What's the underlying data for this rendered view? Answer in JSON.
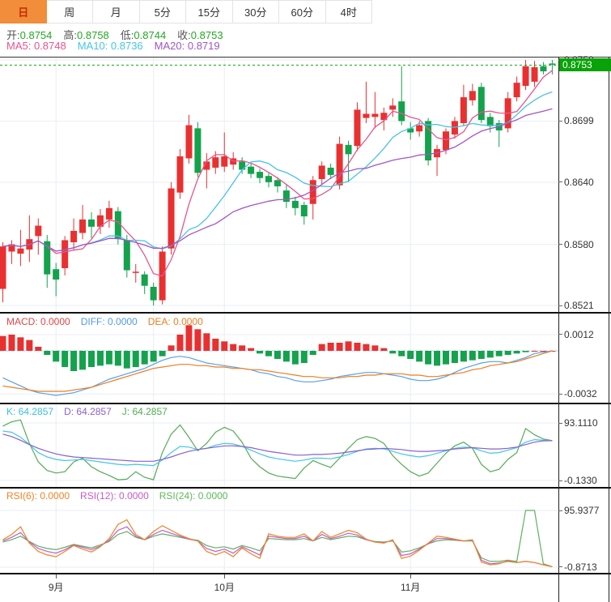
{
  "toolbar": {
    "tabs": [
      {
        "label": "日",
        "active": true
      },
      {
        "label": "周",
        "active": false
      },
      {
        "label": "月",
        "active": false
      },
      {
        "label": "5分",
        "active": false
      },
      {
        "label": "15分",
        "active": false
      },
      {
        "label": "30分",
        "active": false
      },
      {
        "label": "60分",
        "active": false
      },
      {
        "label": "4时",
        "active": false
      }
    ]
  },
  "info": {
    "label_color": "#555555",
    "ohlc_value_color": "#22a822",
    "ohlc": [
      {
        "label": "开:",
        "value": "0.8754"
      },
      {
        "label": "高:",
        "value": "0.8758"
      },
      {
        "label": "低:",
        "value": "0.8744"
      },
      {
        "label": "收:",
        "value": "0.8753"
      }
    ],
    "ma": [
      {
        "label": "MA5:",
        "value": "0.8748",
        "color": "#e8548c"
      },
      {
        "label": "MA10:",
        "value": "0.8736",
        "color": "#45c5e5"
      },
      {
        "label": "MA20:",
        "value": "0.8719",
        "color": "#a055c0"
      }
    ]
  },
  "colors": {
    "up": "#e93030",
    "down": "#14a24d",
    "ma5": "#e8548c",
    "ma10": "#49c1e8",
    "ma20": "#a356c2",
    "diff": "#58a0e8",
    "dea": "#ee7c1e",
    "k": "#41c8e0",
    "d": "#8a5fd0",
    "j": "#55ab55",
    "rsi6": "#ee8322",
    "rsi12": "#c45bcc",
    "rsi24": "#60b060",
    "grid": "#e9eef3",
    "vgrid": "#e8edf2",
    "current": "#0caa0c",
    "macd_zero_dash": "#a8cdf0"
  },
  "chart_data": {
    "type": "candlestick+indicators",
    "main": {
      "y_axis": [
        {
          "text": "0.8758",
          "value": 0.8758
        },
        {
          "text": "0.8699",
          "value": 0.8699
        },
        {
          "text": "0.8640",
          "value": 0.864
        },
        {
          "text": "0.8580",
          "value": 0.858
        },
        {
          "text": "0.8521",
          "value": 0.8521
        }
      ],
      "current": {
        "text": "0.8753",
        "value": 0.8753
      },
      "ma_periods": [
        5,
        10,
        20
      ],
      "candles": [
        [
          0.8537,
          0.8582,
          0.8524,
          0.8578
        ],
        [
          0.8573,
          0.8584,
          0.8561,
          0.858
        ],
        [
          0.8571,
          0.8594,
          0.8559,
          0.8576
        ],
        [
          0.8575,
          0.8608,
          0.8563,
          0.8585
        ],
        [
          0.8588,
          0.8605,
          0.857,
          0.8598
        ],
        [
          0.8583,
          0.8589,
          0.8538,
          0.8551
        ],
        [
          0.8556,
          0.8562,
          0.853,
          0.8546
        ],
        [
          0.8557,
          0.8588,
          0.855,
          0.8584
        ],
        [
          0.8582,
          0.8605,
          0.8575,
          0.8593
        ],
        [
          0.8591,
          0.8618,
          0.8585,
          0.8604
        ],
        [
          0.8604,
          0.8611,
          0.8586,
          0.8597
        ],
        [
          0.8597,
          0.8614,
          0.859,
          0.8608
        ],
        [
          0.8604,
          0.8622,
          0.8596,
          0.8615
        ],
        [
          0.8612,
          0.8616,
          0.858,
          0.8585
        ],
        [
          0.8584,
          0.8589,
          0.8548,
          0.8555
        ],
        [
          0.8552,
          0.8561,
          0.8543,
          0.8553
        ],
        [
          0.8551,
          0.8554,
          0.8532,
          0.854
        ],
        [
          0.8539,
          0.8543,
          0.8521,
          0.8526
        ],
        [
          0.8526,
          0.8578,
          0.8522,
          0.8573
        ],
        [
          0.8576,
          0.864,
          0.857,
          0.8634
        ],
        [
          0.863,
          0.8672,
          0.8624,
          0.8665
        ],
        [
          0.8663,
          0.8705,
          0.8658,
          0.8695
        ],
        [
          0.8692,
          0.8698,
          0.8645,
          0.8649
        ],
        [
          0.8652,
          0.8668,
          0.8634,
          0.866
        ],
        [
          0.8654,
          0.867,
          0.8648,
          0.8664
        ],
        [
          0.8655,
          0.8688,
          0.865,
          0.8665
        ],
        [
          0.8657,
          0.8669,
          0.8652,
          0.8663
        ],
        [
          0.866,
          0.8664,
          0.8648,
          0.8652
        ],
        [
          0.8655,
          0.8658,
          0.8644,
          0.8648
        ],
        [
          0.865,
          0.8653,
          0.8639,
          0.8644
        ],
        [
          0.8646,
          0.8649,
          0.8635,
          0.864
        ],
        [
          0.8642,
          0.8645,
          0.863,
          0.8636
        ],
        [
          0.8632,
          0.8638,
          0.8615,
          0.8621
        ],
        [
          0.8622,
          0.8626,
          0.8608,
          0.8615
        ],
        [
          0.8618,
          0.8621,
          0.8599,
          0.8607
        ],
        [
          0.8619,
          0.8646,
          0.8604,
          0.8642
        ],
        [
          0.8643,
          0.866,
          0.8638,
          0.8656
        ],
        [
          0.8654,
          0.8658,
          0.8643,
          0.8647
        ],
        [
          0.8637,
          0.8684,
          0.8633,
          0.8677
        ],
        [
          0.8676,
          0.868,
          0.864,
          0.8667
        ],
        [
          0.8675,
          0.8717,
          0.867,
          0.871
        ],
        [
          0.8702,
          0.8737,
          0.8697,
          0.8706
        ],
        [
          0.8703,
          0.8727,
          0.8692,
          0.8706
        ],
        [
          0.87,
          0.8712,
          0.869,
          0.8707
        ],
        [
          0.871,
          0.8721,
          0.8703,
          0.8714
        ],
        [
          0.8718,
          0.8752,
          0.8695,
          0.8699
        ],
        [
          0.8692,
          0.8698,
          0.8681,
          0.8688
        ],
        [
          0.8689,
          0.8699,
          0.8684,
          0.8695
        ],
        [
          0.8699,
          0.8702,
          0.8656,
          0.8661
        ],
        [
          0.8664,
          0.8676,
          0.8646,
          0.8672
        ],
        [
          0.8671,
          0.8692,
          0.8667,
          0.8689
        ],
        [
          0.8686,
          0.8703,
          0.8682,
          0.8699
        ],
        [
          0.8697,
          0.8734,
          0.8694,
          0.8722
        ],
        [
          0.8719,
          0.8735,
          0.8714,
          0.8728
        ],
        [
          0.8732,
          0.8736,
          0.8697,
          0.87
        ],
        [
          0.8703,
          0.8707,
          0.8688,
          0.8694
        ],
        [
          0.8697,
          0.87,
          0.8674,
          0.869
        ],
        [
          0.8692,
          0.8727,
          0.8688,
          0.8721
        ],
        [
          0.8722,
          0.8742,
          0.8718,
          0.8736
        ],
        [
          0.8733,
          0.8758,
          0.8729,
          0.8752
        ],
        [
          0.8737,
          0.8757,
          0.8732,
          0.8751
        ],
        [
          0.8752,
          0.8756,
          0.8744,
          0.8747
        ],
        [
          0.8754,
          0.8758,
          0.8744,
          0.8753
        ]
      ]
    },
    "macd": {
      "header": [
        {
          "label": "MACD:",
          "value": "0.0000",
          "color": "#e34545"
        },
        {
          "label": "DIFF:",
          "value": "0.0000",
          "color": "#4f9be8"
        },
        {
          "label": "DEA:",
          "value": "0.0000",
          "color": "#ee7c1e"
        }
      ],
      "y_axis": [
        {
          "text": "0.0012",
          "value": 0.0012
        },
        {
          "text": "-0.0032",
          "value": -0.0032
        }
      ],
      "hist": [
        0.0011,
        0.0012,
        0.001,
        0.0008,
        0.0003,
        -0.0003,
        -0.0008,
        -0.0012,
        -0.0015,
        -0.0014,
        -0.0012,
        -0.0011,
        -0.001,
        -0.0011,
        -0.0013,
        -0.0012,
        -0.001,
        -0.0008,
        -0.0004,
        0.0004,
        0.0012,
        0.0019,
        0.0016,
        0.0013,
        0.0009,
        0.0007,
        0.0005,
        0.0004,
        0.0002,
        -0.0002,
        -0.0004,
        -0.0006,
        -0.0008,
        -0.001,
        -0.0009,
        -0.0003,
        0.0005,
        0.0006,
        0.0006,
        0.0007,
        0.0006,
        0.0005,
        0.0004,
        0.0002,
        -0.0002,
        -0.0004,
        -0.0006,
        -0.0008,
        -0.001,
        -0.0011,
        -0.001,
        -0.0009,
        -0.0008,
        -0.0007,
        -0.0006,
        -0.0005,
        -0.0004,
        -0.0003,
        -0.0002,
        -0.0001,
        0,
        0,
        0
      ],
      "diff": [
        -0.002,
        -0.0023,
        -0.0026,
        -0.0029,
        -0.0031,
        -0.0032,
        -0.0033,
        -0.0032,
        -0.0031,
        -0.0029,
        -0.0027,
        -0.0024,
        -0.0021,
        -0.0019,
        -0.0017,
        -0.0015,
        -0.0013,
        -0.001,
        -0.0007,
        -0.0005,
        -0.0004,
        -0.0005,
        -0.0007,
        -0.0009,
        -0.001,
        -0.0011,
        -0.0012,
        -0.0013,
        -0.0014,
        -0.0016,
        -0.0017,
        -0.0019,
        -0.002,
        -0.0022,
        -0.0023,
        -0.0023,
        -0.0022,
        -0.0021,
        -0.0019,
        -0.0018,
        -0.0017,
        -0.0016,
        -0.0016,
        -0.0017,
        -0.0018,
        -0.0019,
        -0.0021,
        -0.0022,
        -0.0022,
        -0.0021,
        -0.0019,
        -0.0016,
        -0.0013,
        -0.0011,
        -0.0009,
        -0.0008,
        -0.0008,
        -0.0009,
        -0.0007,
        -0.0005,
        -0.0002,
        -0.0001,
        0
      ],
      "dea": [
        -0.0026,
        -0.0027,
        -0.0028,
        -0.0029,
        -0.003,
        -0.003,
        -0.003,
        -0.003,
        -0.0029,
        -0.0028,
        -0.0027,
        -0.0025,
        -0.0023,
        -0.0021,
        -0.0019,
        -0.0017,
        -0.0015,
        -0.0013,
        -0.0012,
        -0.0011,
        -0.001,
        -0.001,
        -0.0011,
        -0.0011,
        -0.0012,
        -0.0012,
        -0.0013,
        -0.0013,
        -0.0014,
        -0.0014,
        -0.0015,
        -0.0016,
        -0.0017,
        -0.0018,
        -0.0019,
        -0.0019,
        -0.002,
        -0.002,
        -0.002,
        -0.0019,
        -0.0019,
        -0.0018,
        -0.0018,
        -0.0017,
        -0.0017,
        -0.0017,
        -0.0018,
        -0.0018,
        -0.0019,
        -0.0019,
        -0.0018,
        -0.0017,
        -0.0016,
        -0.0014,
        -0.0013,
        -0.0011,
        -0.001,
        -0.0009,
        -0.0008,
        -0.0006,
        -0.0004,
        -0.0002,
        0
      ]
    },
    "kdj": {
      "header": [
        {
          "label": "K:",
          "value": "64.2857",
          "color": "#3bc0dd"
        },
        {
          "label": "D:",
          "value": "64.2857",
          "color": "#8a5fd0"
        },
        {
          "label": "J:",
          "value": "64.2857",
          "color": "#4caf50"
        }
      ],
      "y_axis": [
        {
          "text": "93.1110",
          "value": 93.111
        },
        {
          "text": "-0.1330",
          "value": -0.133
        }
      ],
      "k": [
        80,
        78,
        70,
        58,
        45,
        38,
        34,
        32,
        33,
        34,
        32,
        30,
        28,
        26,
        25,
        26,
        25,
        24,
        33,
        45,
        55,
        54,
        50,
        52,
        57,
        60,
        59,
        55,
        49,
        43,
        38,
        35,
        33,
        31,
        33,
        36,
        36,
        35,
        38,
        42,
        47,
        51,
        52,
        51,
        47,
        43,
        40,
        38,
        40,
        44,
        48,
        52,
        54,
        53,
        48,
        44,
        45,
        49,
        53,
        62,
        66,
        65,
        64.29
      ],
      "d": [
        75,
        71,
        65,
        58,
        52,
        47,
        43,
        40,
        38,
        37,
        36,
        35,
        34,
        33,
        32,
        31,
        31,
        31,
        34,
        38,
        43,
        47,
        50,
        52,
        54,
        56,
        56,
        55,
        53,
        50,
        47,
        45,
        43,
        41,
        41,
        42,
        42,
        43,
        44,
        46,
        48,
        50,
        51,
        52,
        51,
        50,
        48,
        47,
        47,
        48,
        49,
        51,
        52,
        53,
        52,
        51,
        51,
        52,
        54,
        58,
        62,
        64,
        64.29
      ],
      "j": [
        88,
        95,
        98,
        60,
        30,
        16,
        12,
        14,
        30,
        36,
        22,
        14,
        8,
        1,
        2,
        14,
        5,
        1,
        45,
        75,
        90,
        70,
        48,
        60,
        78,
        86,
        80,
        62,
        36,
        22,
        12,
        7,
        5,
        3,
        20,
        32,
        26,
        21,
        36,
        52,
        66,
        71,
        68,
        60,
        40,
        26,
        14,
        7,
        12,
        28,
        44,
        56,
        62,
        52,
        26,
        14,
        18,
        34,
        45,
        84,
        74,
        67,
        64.29
      ]
    },
    "rsi": {
      "header": [
        {
          "label": "RSI(6):",
          "value": "0.0000",
          "color": "#f0832a"
        },
        {
          "label": "RSI(12):",
          "value": "0.0000",
          "color": "#c45bcc"
        },
        {
          "label": "RSI(24):",
          "value": "0.0000",
          "color": "#5cb85c"
        }
      ],
      "y_axis": [
        {
          "text": "95.9377",
          "value": 95.9377
        },
        {
          "text": "-0.8713",
          "value": -0.8713
        }
      ],
      "rsi6": [
        46,
        55,
        68,
        40,
        26,
        20,
        17,
        26,
        36,
        30,
        25,
        34,
        48,
        72,
        80,
        55,
        46,
        60,
        70,
        62,
        54,
        48,
        44,
        26,
        20,
        26,
        17,
        32,
        22,
        14,
        56,
        52,
        50,
        50,
        56,
        44,
        60,
        50,
        56,
        62,
        58,
        47,
        42,
        40,
        46,
        14,
        18,
        28,
        40,
        52,
        50,
        47,
        44,
        46,
        8,
        3,
        5,
        10,
        7,
        9,
        7,
        3,
        0
      ],
      "rsi12": [
        44,
        50,
        58,
        42,
        31,
        26,
        23,
        29,
        37,
        33,
        29,
        35,
        45,
        62,
        68,
        52,
        46,
        55,
        62,
        57,
        52,
        47,
        44,
        31,
        26,
        30,
        23,
        34,
        27,
        20,
        52,
        50,
        48,
        48,
        52,
        44,
        55,
        48,
        52,
        57,
        54,
        46,
        42,
        41,
        45,
        19,
        22,
        30,
        39,
        48,
        48,
        46,
        44,
        45,
        11,
        5,
        6,
        9,
        7,
        9,
        7,
        3,
        0
      ],
      "rsi24": [
        42,
        46,
        52,
        43,
        35,
        31,
        29,
        33,
        38,
        35,
        32,
        37,
        43,
        55,
        60,
        50,
        46,
        52,
        56,
        53,
        50,
        47,
        45,
        36,
        32,
        34,
        30,
        36,
        32,
        27,
        48,
        47,
        46,
        46,
        48,
        44,
        50,
        46,
        49,
        52,
        51,
        46,
        43,
        42,
        44,
        25,
        27,
        32,
        39,
        44,
        46,
        45,
        44,
        44,
        15,
        9,
        9,
        11,
        9,
        96,
        96,
        5,
        0
      ]
    },
    "x_axis": {
      "months": [
        {
          "label": "9月",
          "index": 6
        },
        {
          "label": "10月",
          "index": 25
        },
        {
          "label": "11月",
          "index": 46
        }
      ],
      "grid_indices": [
        6,
        17,
        25,
        46
      ]
    }
  }
}
